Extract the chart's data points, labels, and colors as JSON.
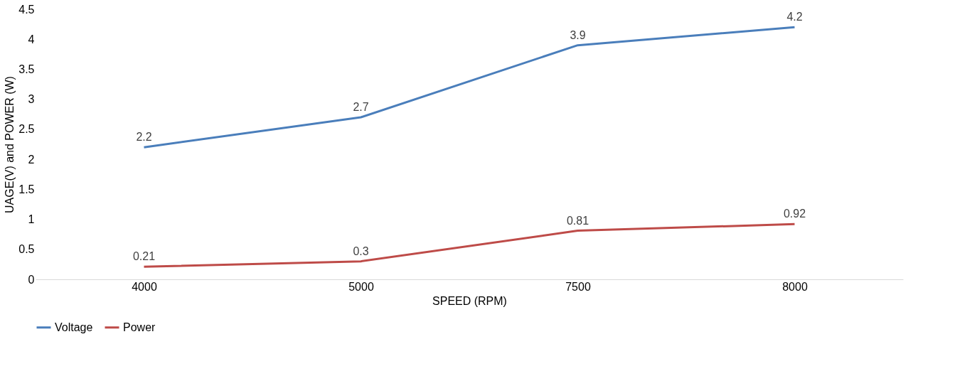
{
  "chart_data": {
    "type": "line",
    "xlabel": "SPEED (RPM)",
    "ylabel": "UAGE(V) and POWER (W)",
    "categories": [
      "4000",
      "5000",
      "7500",
      "8000"
    ],
    "series": [
      {
        "name": "Voltage",
        "color": "#4a7ebb",
        "values": [
          2.2,
          2.7,
          3.9,
          4.2
        ]
      },
      {
        "name": "Power",
        "color": "#be4b48",
        "values": [
          0.21,
          0.3,
          0.81,
          0.92
        ]
      }
    ],
    "ylim": [
      0,
      4.5
    ],
    "yticks": [
      0,
      0.5,
      1,
      1.5,
      2,
      2.5,
      3,
      3.5,
      4,
      4.5
    ],
    "data_labels": true,
    "legend": "bottom",
    "grid": false,
    "marker": "none",
    "line_style": "solid"
  }
}
